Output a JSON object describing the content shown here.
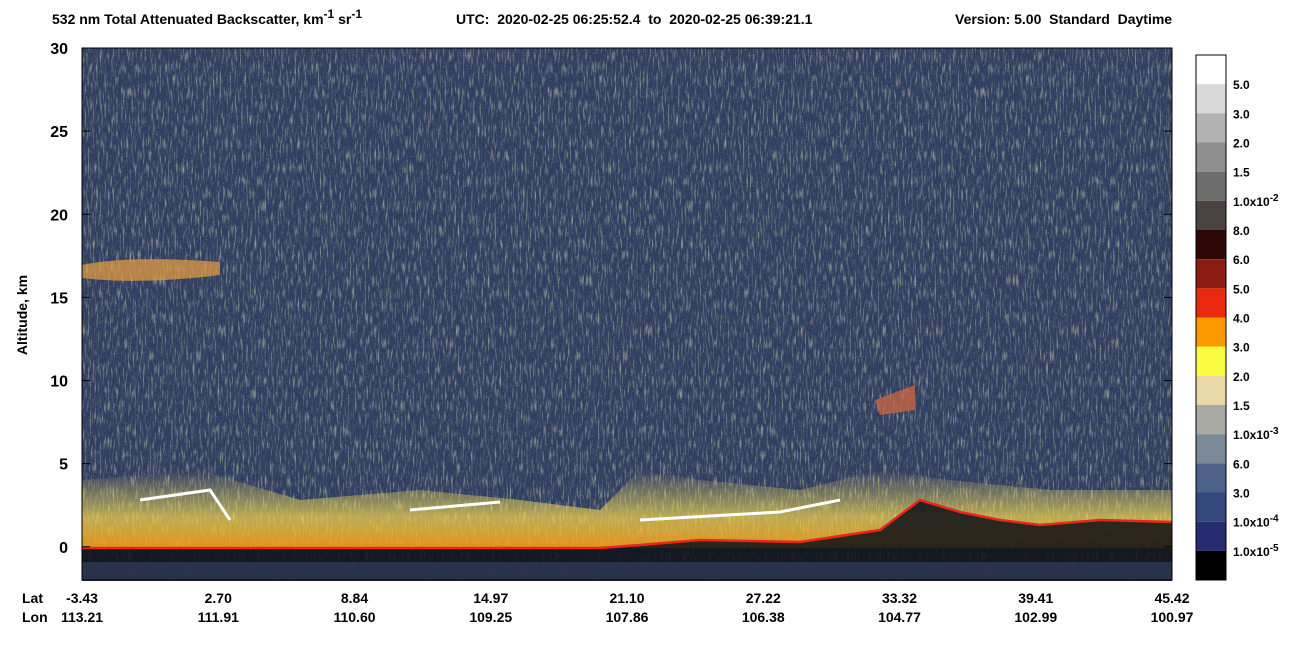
{
  "chart_data": {
    "type": "curtain",
    "title": {
      "text": "532 nm Total Attenuated Backscatter, km",
      "exp1": "-1",
      "unit": " sr",
      "exp2": "-1"
    },
    "time_range": "UTC:  2020-02-25 06:25:52.4  to  2020-02-25 06:39:21.1",
    "version": "Version: 5.00  Standard  Daytime",
    "ylabel": "Altitude, km",
    "ylim": [
      -2,
      30
    ],
    "yticks": [
      0,
      5,
      10,
      15,
      20,
      25,
      30
    ],
    "x_rows": [
      {
        "name": "Lat",
        "values": [
          "-3.43",
          "2.70",
          "8.84",
          "14.97",
          "21.10",
          "27.22",
          "33.32",
          "39.41",
          "45.42"
        ]
      },
      {
        "name": "Lon",
        "values": [
          "113.21",
          "111.91",
          "110.60",
          "109.25",
          "107.86",
          "106.38",
          "104.77",
          "102.99",
          "100.97"
        ]
      }
    ],
    "colorbar": {
      "colors": [
        "#ffffff",
        "#d9d9d9",
        "#b2b2b2",
        "#8f8f8f",
        "#6d6d6d",
        "#4b4341",
        "#2e0807",
        "#8a1b13",
        "#e8290f",
        "#fb9a03",
        "#fbfb42",
        "#ead8a9",
        "#a9aaa2",
        "#7a8a99",
        "#4d6188",
        "#35487e",
        "#262c70",
        "#000000"
      ],
      "labels": [
        "5.0",
        "3.0",
        "2.0",
        "1.5",
        {
          "base": "1.0x10",
          "exp": "-2"
        },
        "8.0",
        "6.0",
        "5.0",
        "4.0",
        "3.0",
        "2.0",
        "1.5",
        {
          "base": "1.0x10",
          "exp": "-3"
        },
        "6.0",
        "3.0",
        {
          "base": "1.0x10",
          "exp": "-4"
        },
        {
          "base": "1.0x10",
          "exp": "-5"
        }
      ]
    }
  }
}
